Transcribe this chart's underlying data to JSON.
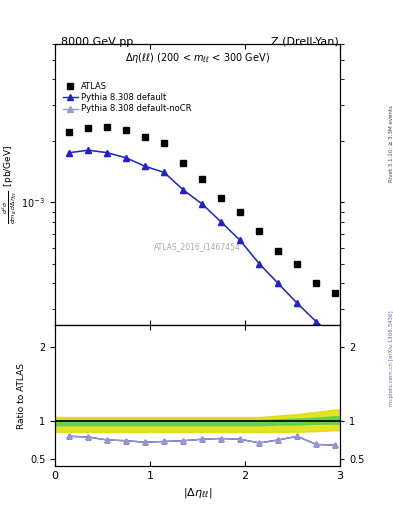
{
  "title_left": "8000 GeV pp",
  "title_right": "Z (Drell-Yan)",
  "watermark": "ATLAS_2016_I1467454",
  "right_label_top": "Rivet 3.1.10; ≥ 3.3M events",
  "right_label_bottom": "mcplots.cern.ch [arXiv:1306.3436]",
  "ylim_main": [
    0.00025,
    0.006
  ],
  "ylim_ratio": [
    0.4,
    2.3
  ],
  "atlas_x": [
    0.15,
    0.35,
    0.55,
    0.75,
    0.95,
    1.15,
    1.35,
    1.55,
    1.75,
    1.95,
    2.15,
    2.35,
    2.55,
    2.75,
    2.95
  ],
  "atlas_y": [
    0.0022,
    0.0023,
    0.00235,
    0.00225,
    0.0021,
    0.00195,
    0.00155,
    0.0013,
    0.00105,
    0.0009,
    0.00072,
    0.00058,
    0.0005,
    0.0004,
    0.00036
  ],
  "pythia_default_x": [
    0.15,
    0.35,
    0.55,
    0.75,
    0.95,
    1.15,
    1.35,
    1.55,
    1.75,
    1.95,
    2.15,
    2.35,
    2.55,
    2.75,
    2.95
  ],
  "pythia_default_y": [
    0.00175,
    0.0018,
    0.00175,
    0.00165,
    0.0015,
    0.0014,
    0.00115,
    0.00098,
    0.0008,
    0.00065,
    0.0005,
    0.0004,
    0.00032,
    0.00026,
    0.00022
  ],
  "pythia_noCR_x": [
    0.15,
    0.35,
    0.55,
    0.75,
    0.95,
    1.15,
    1.35,
    1.55,
    1.75,
    1.95,
    2.15,
    2.35,
    2.55,
    2.75,
    2.95
  ],
  "pythia_noCR_y": [
    0.00175,
    0.0018,
    0.00175,
    0.00165,
    0.0015,
    0.0014,
    0.00115,
    0.00098,
    0.0008,
    0.00065,
    0.0005,
    0.0004,
    0.00032,
    0.00026,
    0.00022
  ],
  "ratio_default_y": [
    0.8,
    0.79,
    0.75,
    0.74,
    0.72,
    0.73,
    0.74,
    0.76,
    0.77,
    0.76,
    0.71,
    0.75,
    0.8,
    0.69,
    0.68
  ],
  "ratio_noCR_y": [
    0.8,
    0.79,
    0.75,
    0.74,
    0.72,
    0.73,
    0.74,
    0.76,
    0.77,
    0.76,
    0.71,
    0.75,
    0.8,
    0.69,
    0.68
  ],
  "band_x": [
    0.0,
    0.15,
    0.35,
    0.55,
    0.75,
    0.95,
    1.15,
    1.35,
    1.55,
    1.75,
    1.95,
    2.15,
    2.35,
    2.55,
    2.75,
    2.95,
    3.0
  ],
  "band_yellow_lo": [
    0.86,
    0.86,
    0.86,
    0.86,
    0.86,
    0.86,
    0.86,
    0.86,
    0.86,
    0.86,
    0.86,
    0.86,
    0.86,
    0.86,
    0.87,
    0.88,
    0.88
  ],
  "band_yellow_hi": [
    1.06,
    1.06,
    1.06,
    1.06,
    1.06,
    1.06,
    1.06,
    1.06,
    1.06,
    1.06,
    1.06,
    1.06,
    1.08,
    1.1,
    1.13,
    1.16,
    1.16
  ],
  "band_green_lo": [
    0.95,
    0.95,
    0.95,
    0.95,
    0.95,
    0.95,
    0.95,
    0.95,
    0.95,
    0.95,
    0.95,
    0.95,
    0.96,
    0.96,
    0.97,
    0.97,
    0.97
  ],
  "band_green_hi": [
    1.02,
    1.02,
    1.02,
    1.02,
    1.02,
    1.02,
    1.02,
    1.02,
    1.02,
    1.02,
    1.02,
    1.02,
    1.03,
    1.04,
    1.05,
    1.07,
    1.07
  ],
  "color_atlas": "#000000",
  "color_pythia_default": "#2222cc",
  "color_pythia_noCR": "#9999cc",
  "color_green": "#55cc55",
  "color_yellow": "#dddd00",
  "xlim": [
    0,
    3.0
  ],
  "xticks": [
    0,
    1,
    2,
    3
  ],
  "yticks_ratio": [
    0.5,
    1.0,
    2.0
  ],
  "ytick_labels_ratio": [
    "0.5",
    "1",
    "2"
  ]
}
